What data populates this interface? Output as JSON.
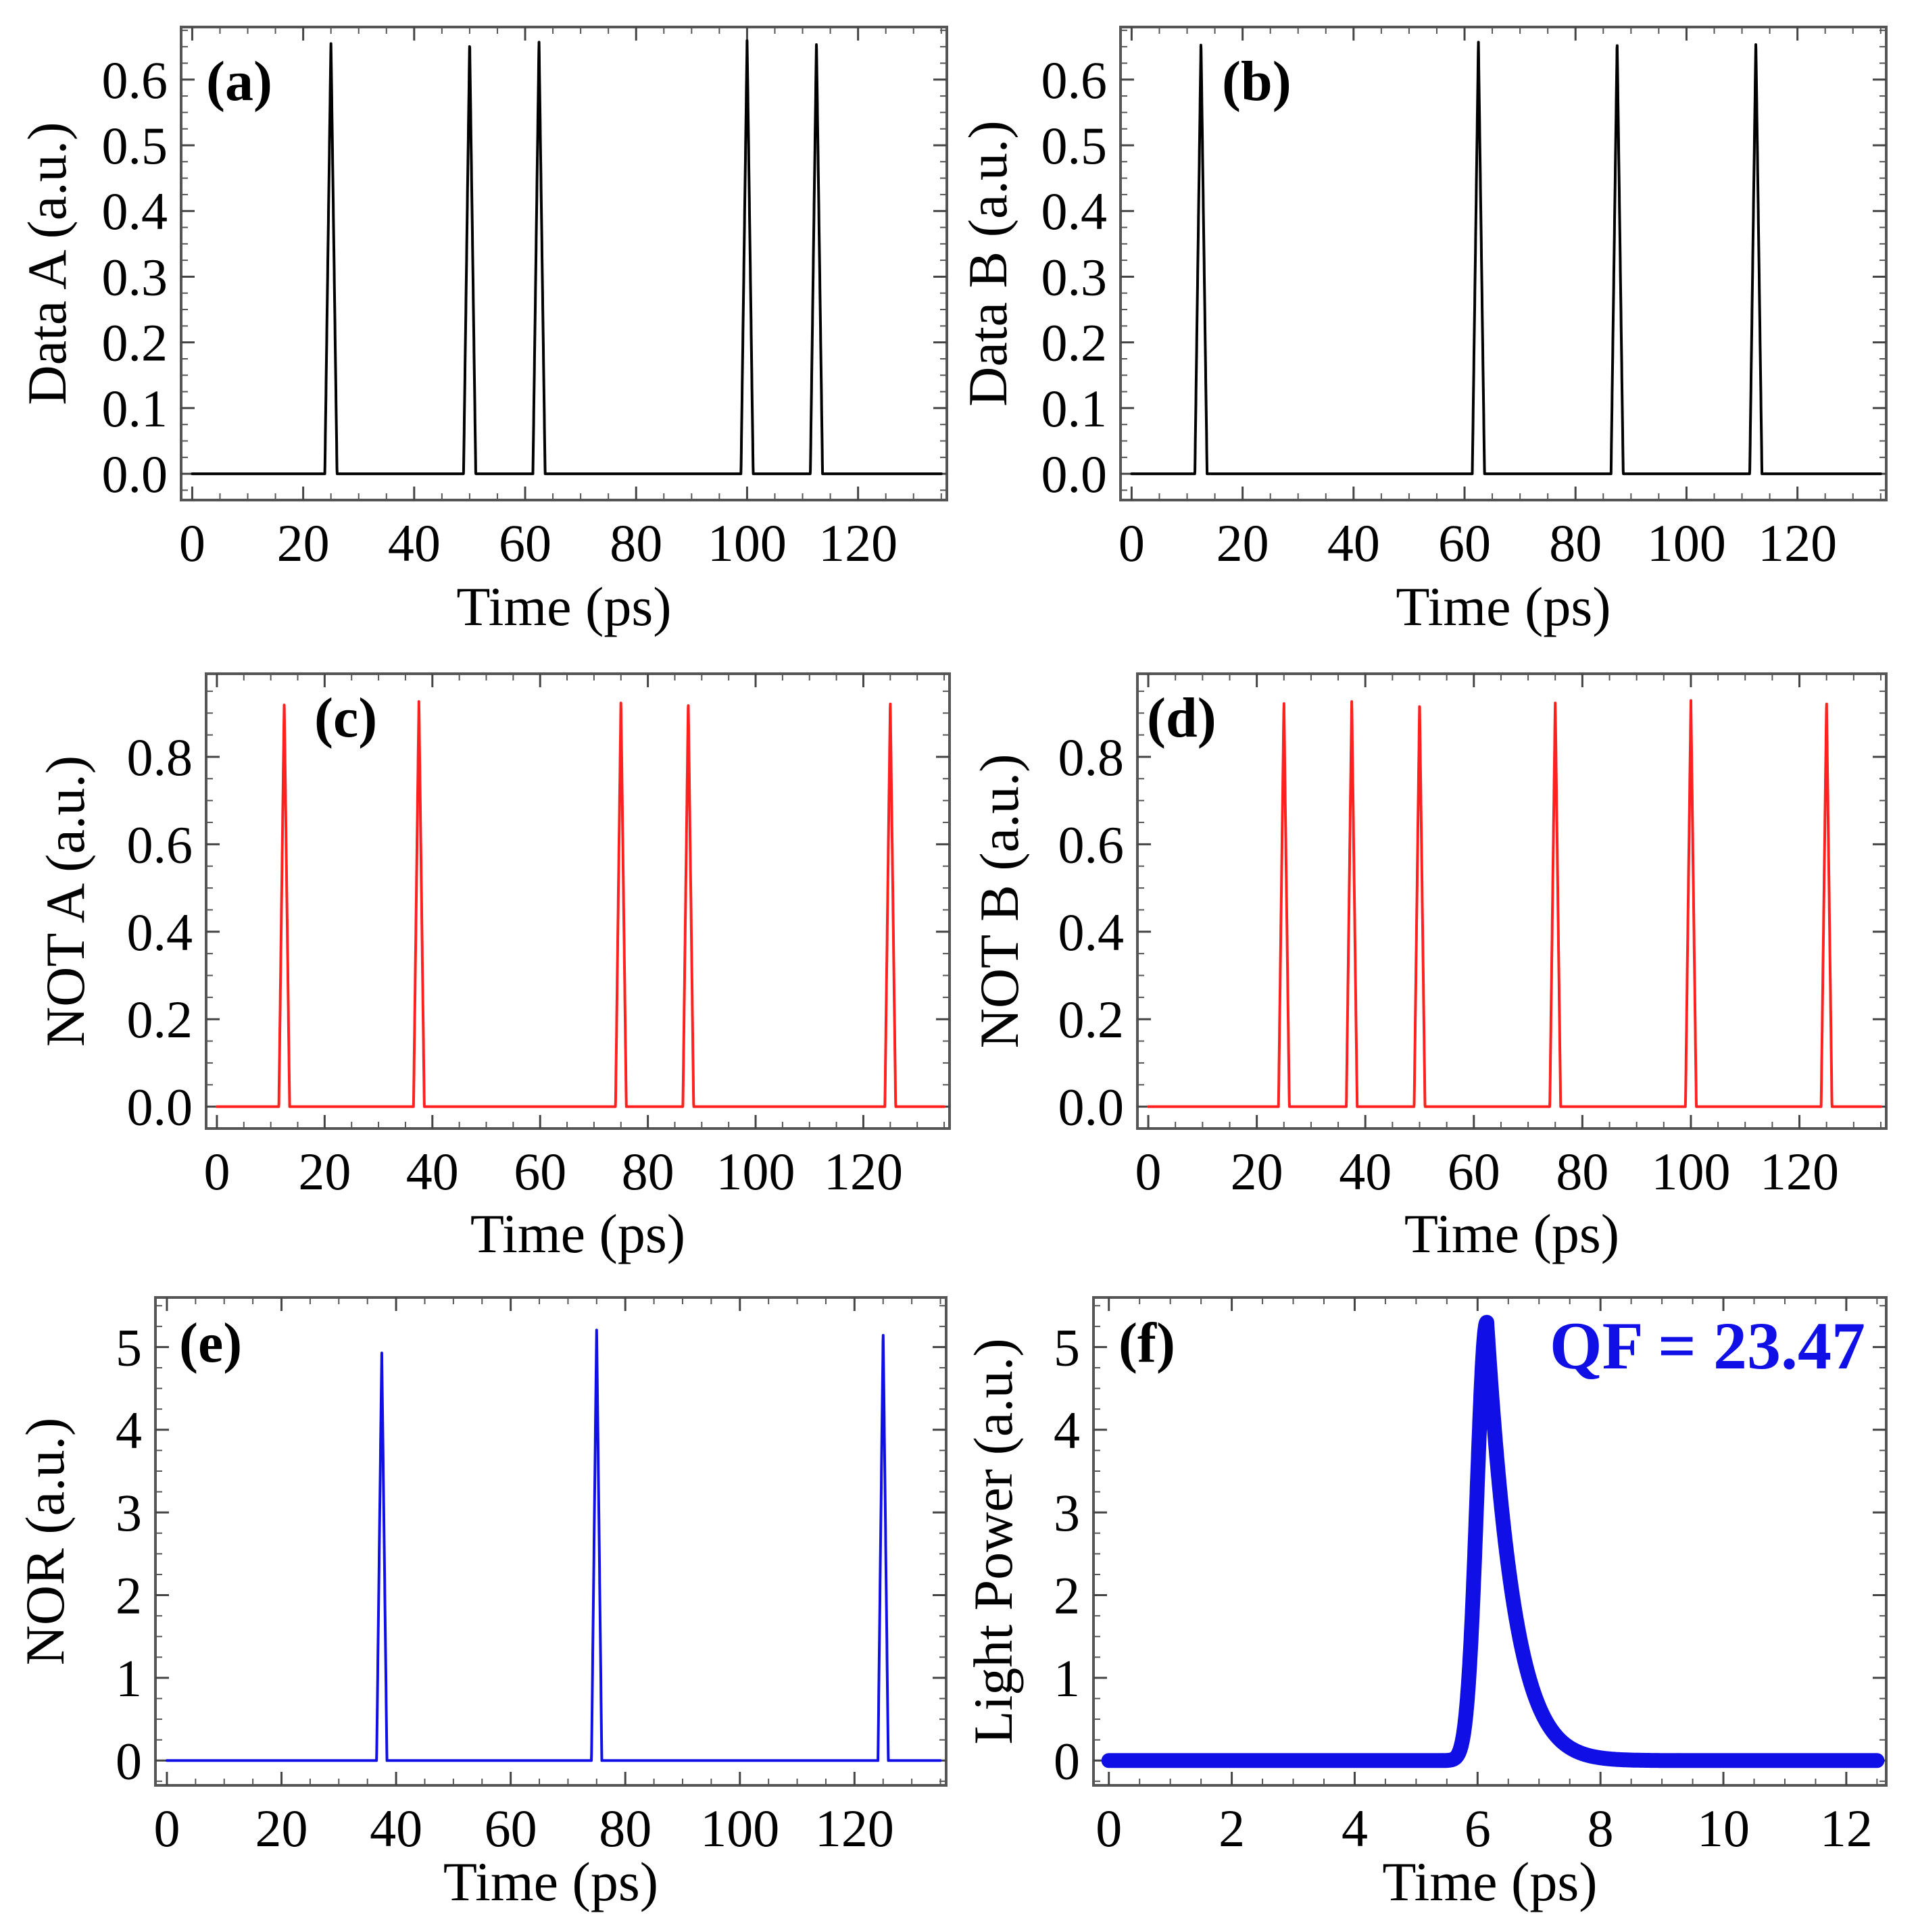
{
  "figure": {
    "colors": {
      "black": "#000000",
      "red": "#ff2020",
      "blue": "#1010e6"
    }
  },
  "chart_data": [
    {
      "id": "a",
      "type": "line",
      "panel_label": "(a)",
      "xlabel": "Time (ps)",
      "ylabel": "Data A (a.u.)",
      "xlim": [
        -2,
        136
      ],
      "ylim": [
        -0.04,
        0.68
      ],
      "xticks": [
        0,
        20,
        40,
        60,
        80,
        100,
        120
      ],
      "yticks": [
        0.0,
        0.1,
        0.2,
        0.3,
        0.4,
        0.5,
        0.6
      ],
      "tick_format": "1dp",
      "pulse_times": [
        25,
        50,
        62.5,
        100,
        112.5
      ],
      "pulse_peak": 0.66,
      "pulse_halfwidth": 1.1,
      "x_range": [
        0,
        135
      ],
      "color": "#000000"
    },
    {
      "id": "b",
      "type": "line",
      "panel_label": "(b)",
      "xlabel": "Time (ps)",
      "ylabel": "Data B (a.u.)",
      "xlim": [
        -2,
        136
      ],
      "ylim": [
        -0.04,
        0.68
      ],
      "xticks": [
        0,
        20,
        40,
        60,
        80,
        100,
        120
      ],
      "yticks": [
        0.0,
        0.1,
        0.2,
        0.3,
        0.4,
        0.5,
        0.6
      ],
      "tick_format": "1dp",
      "pulse_times": [
        12.5,
        62.5,
        87.5,
        112.5
      ],
      "pulse_peak": 0.66,
      "pulse_halfwidth": 1.1,
      "x_range": [
        0,
        135
      ],
      "color": "#000000"
    },
    {
      "id": "c",
      "type": "line",
      "panel_label": "(c)",
      "xlabel": "Time (ps)",
      "ylabel": "NOT A (a.u.)",
      "xlim": [
        -2,
        136
      ],
      "ylim": [
        -0.05,
        0.99
      ],
      "xticks": [
        0,
        20,
        40,
        60,
        80,
        100,
        120
      ],
      "yticks": [
        0.0,
        0.2,
        0.4,
        0.6,
        0.8
      ],
      "tick_format": "1dp",
      "pulse_times": [
        12.5,
        37.5,
        75,
        87.5,
        125
      ],
      "pulse_peak": 0.93,
      "pulse_halfwidth": 1.0,
      "x_range": [
        0,
        135
      ],
      "color": "#ff2020"
    },
    {
      "id": "d",
      "type": "line",
      "panel_label": "(d)",
      "xlabel": "Time (ps)",
      "ylabel": "NOT B (a.u.)",
      "xlim": [
        -2,
        136
      ],
      "ylim": [
        -0.05,
        0.99
      ],
      "xticks": [
        0,
        20,
        40,
        60,
        80,
        100,
        120
      ],
      "yticks": [
        0.0,
        0.2,
        0.4,
        0.6,
        0.8
      ],
      "tick_format": "1dp",
      "pulse_times": [
        25,
        37.5,
        50,
        75,
        100,
        125
      ],
      "pulse_peak": 0.93,
      "pulse_halfwidth": 1.0,
      "x_range": [
        0,
        135
      ],
      "color": "#ff2020"
    },
    {
      "id": "e",
      "type": "line",
      "panel_label": "(e)",
      "xlabel": "Time (ps)",
      "ylabel": "NOR (a.u.)",
      "xlim": [
        -2,
        136
      ],
      "ylim": [
        -0.3,
        5.6
      ],
      "xticks": [
        0,
        20,
        40,
        60,
        80,
        100,
        120
      ],
      "yticks": [
        0,
        1,
        2,
        3,
        4,
        5
      ],
      "tick_format": "int",
      "pulse_times": [
        37.5,
        75,
        125
      ],
      "pulse_peaks": [
        4.95,
        5.25,
        5.2
      ],
      "pulse_halfwidth": 0.9,
      "x_range": [
        0,
        135
      ],
      "color": "#1010e6"
    },
    {
      "id": "f",
      "type": "line",
      "panel_label": "(f)",
      "xlabel": "Time (ps)",
      "ylabel": "Light Power (a.u.)",
      "xlim": [
        -0.25,
        12.65
      ],
      "ylim": [
        -0.3,
        5.6
      ],
      "xticks": [
        0,
        2,
        4,
        6,
        8,
        10,
        12
      ],
      "yticks": [
        0,
        1,
        2,
        3,
        4,
        5
      ],
      "tick_format": "int",
      "x_range": [
        0,
        12.5
      ],
      "pulse_center": 6.15,
      "pulse_peak": 5.3,
      "rise_sigma": 0.16,
      "decay_tau": 0.45,
      "annotation": "QF = 23.47",
      "color": "#1010e6",
      "thick": true
    }
  ]
}
